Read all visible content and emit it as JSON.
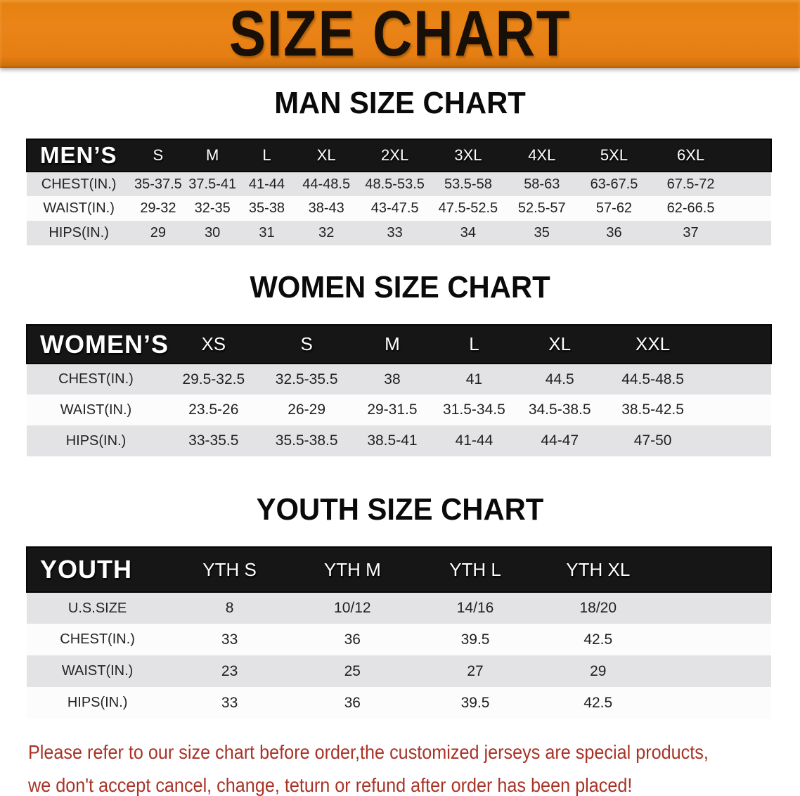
{
  "banner": {
    "title": "SIZE CHART",
    "background": "#e8801a"
  },
  "colors": {
    "banner_orange": "#e8801a",
    "header_black": "#161616",
    "row_gray": "#e3e3e5",
    "disclaimer_red": "#a93226"
  },
  "sections": [
    {
      "heading": "MAN SIZE CHART",
      "table": {
        "label": "MEN’S",
        "columns": [
          "S",
          "M",
          "L",
          "XL",
          "2XL",
          "3XL",
          "4XL",
          "5XL",
          "6XL"
        ],
        "rows": [
          {
            "label": "CHEST(IN.)",
            "values": [
              "35-37.5",
              "37.5-41",
              "41-44",
              "44-48.5",
              "48.5-53.5",
              "53.5-58",
              "58-63",
              "63-67.5",
              "67.5-72"
            ]
          },
          {
            "label": "WAIST(IN.)",
            "values": [
              "29-32",
              "32-35",
              "35-38",
              "38-43",
              "43-47.5",
              "47.5-52.5",
              "52.5-57",
              "57-62",
              "62-66.5"
            ]
          },
          {
            "label": "HIPS(IN.)",
            "values": [
              "29",
              "30",
              "31",
              "32",
              "33",
              "34",
              "35",
              "36",
              "37"
            ]
          }
        ]
      }
    },
    {
      "heading": "WOMEN SIZE CHART",
      "table": {
        "label": "WOMEN’S",
        "columns": [
          "XS",
          "S",
          "M",
          "L",
          "XL",
          "XXL"
        ],
        "rows": [
          {
            "label": "CHEST(IN.)",
            "values": [
              "29.5-32.5",
              "32.5-35.5",
              "38",
              "41",
              "44.5",
              "44.5-48.5"
            ]
          },
          {
            "label": "WAIST(IN.)",
            "values": [
              "23.5-26",
              "26-29",
              "29-31.5",
              "31.5-34.5",
              "34.5-38.5",
              "38.5-42.5"
            ]
          },
          {
            "label": "HIPS(IN.)",
            "values": [
              "33-35.5",
              "35.5-38.5",
              "38.5-41",
              "41-44",
              "44-47",
              "47-50"
            ]
          }
        ]
      }
    },
    {
      "heading": "YOUTH SIZE CHART",
      "table": {
        "label": "YOUTH",
        "columns": [
          "YTH S",
          "YTH M",
          "YTH L",
          "YTH XL"
        ],
        "rows": [
          {
            "label": "U.S.SIZE",
            "values": [
              "8",
              "10/12",
              "14/16",
              "18/20"
            ]
          },
          {
            "label": "CHEST(IN.)",
            "values": [
              "33",
              "36",
              "39.5",
              "42.5"
            ]
          },
          {
            "label": "WAIST(IN.)",
            "values": [
              "23",
              "25",
              "27",
              "29"
            ]
          },
          {
            "label": "HIPS(IN.)",
            "values": [
              "33",
              "36",
              "39.5",
              "42.5"
            ]
          }
        ]
      }
    }
  ],
  "disclaimer": {
    "lines": [
      "Please refer to our size chart before order,the customized jerseys are special products,",
      "we don't accept cancel, change, teturn or refund after order has been placed!"
    ]
  }
}
